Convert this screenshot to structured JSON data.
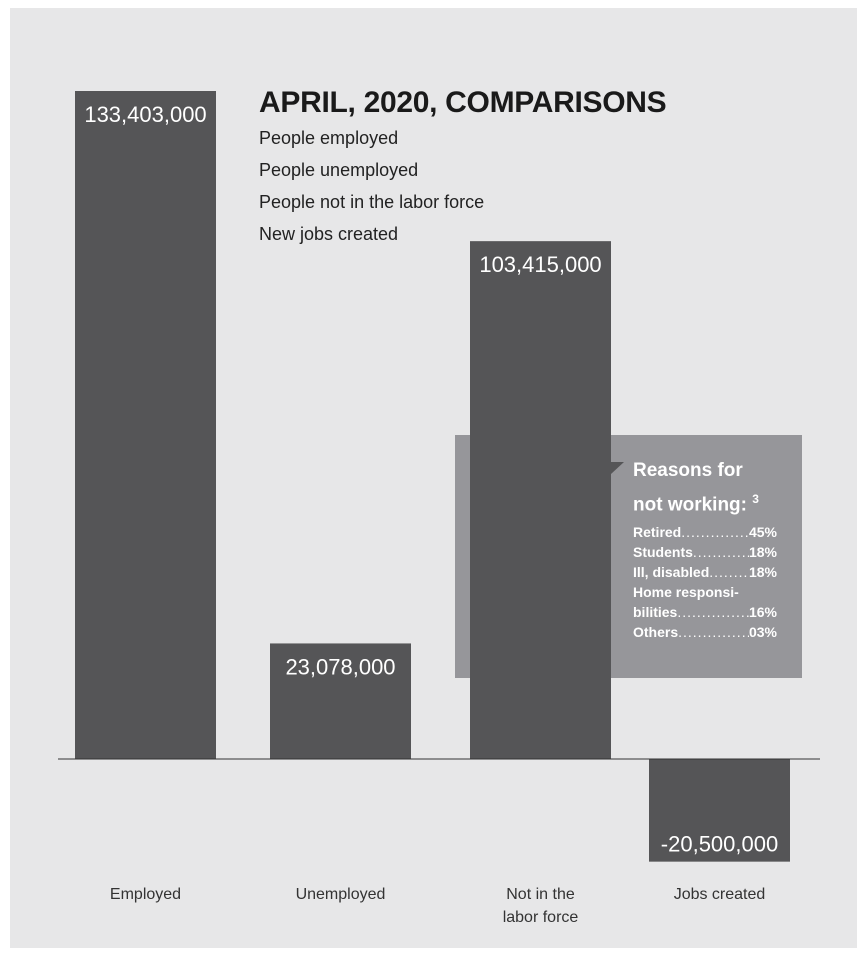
{
  "chart_data": {
    "type": "bar",
    "title": "APRIL, 2020, COMPARISONS",
    "legend_lines": [
      "People employed",
      "People unemployed",
      "People not in the labor force",
      "New jobs created"
    ],
    "categories": [
      "Employed",
      "Unemployed",
      "Not in the|labor force",
      "Jobs created"
    ],
    "values": [
      133403000,
      23078000,
      103415000,
      -20500000
    ],
    "value_labels": [
      "133,403,000",
      "23,078,000",
      "103,415,000",
      "-20,500,000"
    ],
    "bar_color": "#555557",
    "background": "#e7e7e8"
  },
  "reasons": {
    "title_line1": "Reasons for",
    "title_line2": "not working:",
    "footnote_mark": "3",
    "box_color": "#96969a",
    "items": [
      {
        "label": "Retired",
        "value": "45%"
      },
      {
        "label": "Students",
        "value": "18%"
      },
      {
        "label": "Ill, disabled",
        "value": "18%"
      },
      {
        "label": "Home responsi-",
        "value": ""
      },
      {
        "label": "bilities",
        "value": "16%"
      },
      {
        "label": "Others",
        "value": "03%"
      }
    ]
  }
}
